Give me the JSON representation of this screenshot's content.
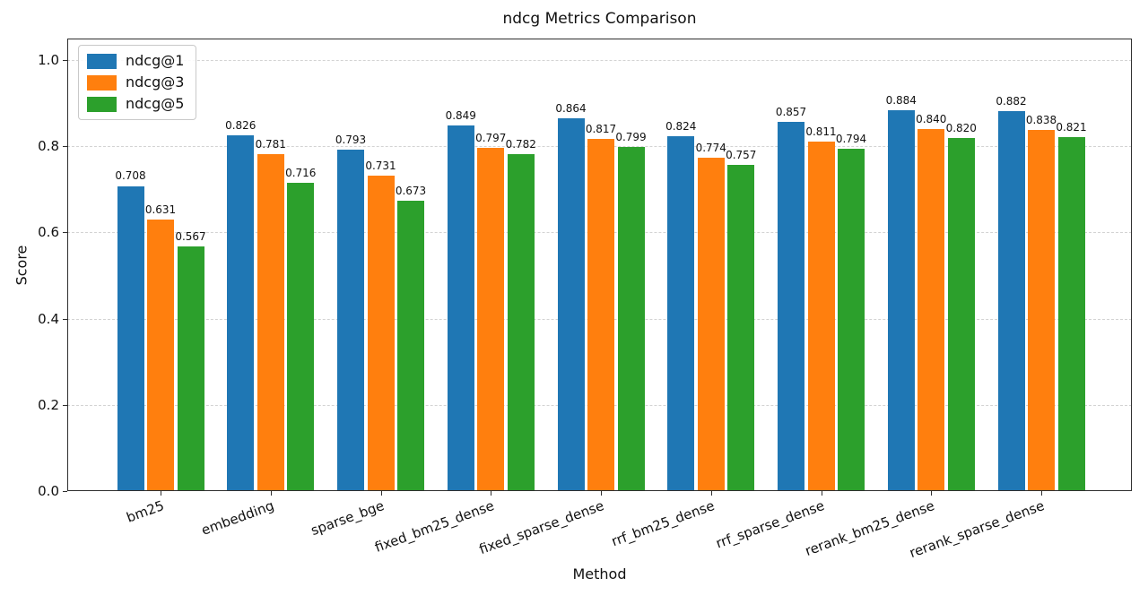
{
  "chart_data": {
    "type": "bar",
    "title": "ndcg Metrics Comparison",
    "xlabel": "Method",
    "ylabel": "Score",
    "categories": [
      "bm25",
      "embedding",
      "sparse_bge",
      "fixed_bm25_dense",
      "fixed_sparse_dense",
      "rrf_bm25_dense",
      "rrf_sparse_dense",
      "rerank_bm25_dense",
      "rerank_sparse_dense"
    ],
    "series": [
      {
        "name": "ndcg@1",
        "color": "#1f77b4",
        "values": [
          0.708,
          0.826,
          0.793,
          0.849,
          0.864,
          0.824,
          0.857,
          0.884,
          0.882
        ]
      },
      {
        "name": "ndcg@3",
        "color": "#ff7f0e",
        "values": [
          0.631,
          0.781,
          0.731,
          0.797,
          0.817,
          0.774,
          0.811,
          0.84,
          0.838
        ]
      },
      {
        "name": "ndcg@5",
        "color": "#2ca02c",
        "values": [
          0.567,
          0.716,
          0.673,
          0.782,
          0.799,
          0.757,
          0.794,
          0.82,
          0.821
        ]
      }
    ],
    "value_label_decimals": 3,
    "yticks": [
      0.0,
      0.2,
      0.4,
      0.6,
      0.8,
      1.0
    ],
    "ylim": [
      0.0,
      1.05
    ],
    "grid": true,
    "grid_style": "dashed",
    "legend_position": "upper left",
    "xtick_rotation_deg": 20,
    "colors": {
      "grid": "#d3d3d3",
      "axis": "#2f2f2f",
      "text": "#111111",
      "background": "#ffffff"
    }
  }
}
